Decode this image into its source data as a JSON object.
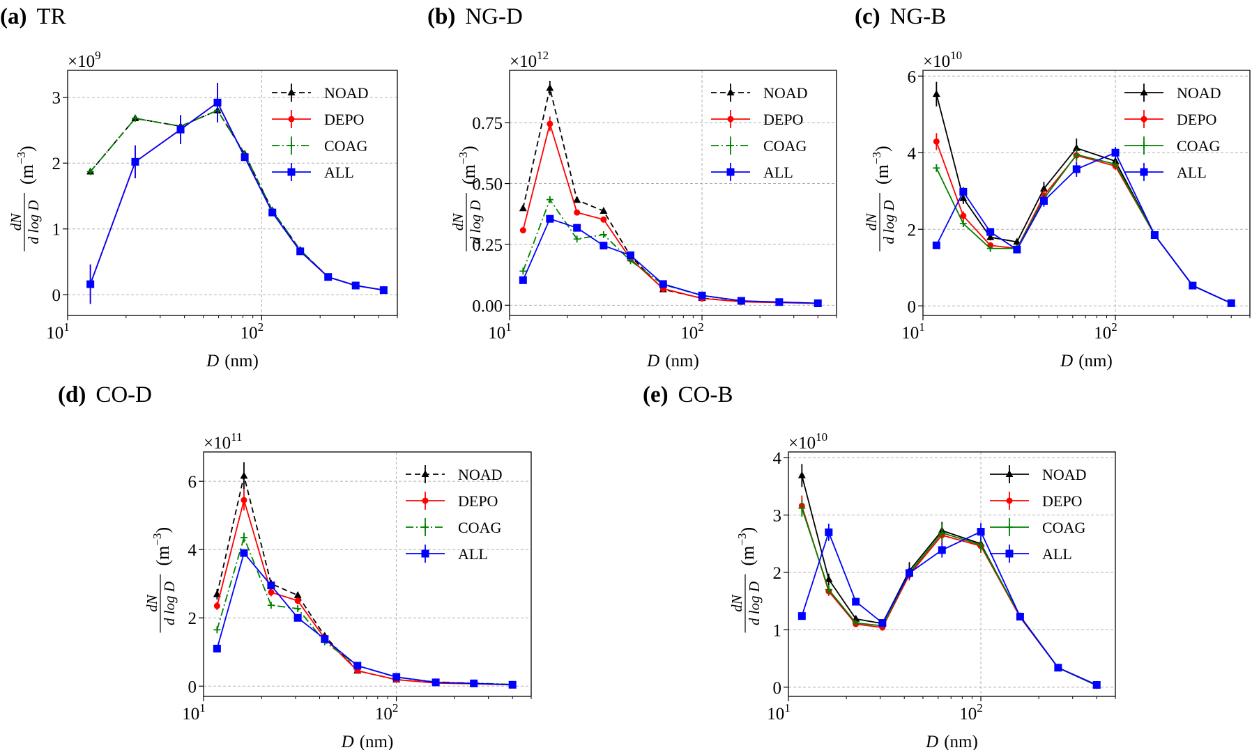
{
  "chart_data": [
    {
      "type": "line",
      "panel_label": "(a)",
      "title": "TR",
      "xlabel": {
        "var": "D",
        "unit": "(nm)"
      },
      "ylabel": {
        "numerator": "dN",
        "denominator": "d log D",
        "unit": "(m",
        "unit_exp": "−3",
        "unit_close": ")"
      },
      "xscale": "log",
      "xlim": [
        10,
        500
      ],
      "ylim": [
        -0.315,
        3.41
      ],
      "x_ticks": [
        "10",
        "1",
        "10",
        "2"
      ],
      "y_ticks": [
        {
          "v": 0,
          "label": "0"
        },
        {
          "v": 1,
          "label": "1"
        },
        {
          "v": 2,
          "label": "2"
        },
        {
          "v": 3,
          "label": "3"
        }
      ],
      "offset": {
        "base": "×10",
        "exp": "9"
      },
      "grid": true,
      "legend": "top-right",
      "x": [
        13.1,
        22.3,
        38.2,
        59.2,
        81.8,
        113.5,
        158,
        220,
        305,
        425
      ],
      "series": [
        {
          "name": "NOAD",
          "color": "#000000",
          "style": "dashed",
          "marker": "triangle",
          "values": [
            1.87,
            2.68,
            2.56,
            2.8,
            2.14,
            1.28,
            0.68,
            0.27,
            0.14,
            0.07
          ],
          "yerr": [
            0.03,
            0.03,
            0.03,
            0.05,
            0.03,
            0.02,
            0.02,
            0.01,
            0.01,
            0.01
          ]
        },
        {
          "name": "DEPO",
          "color": "#ff0000",
          "style": "solid",
          "marker": "circle",
          "values": [
            0.16,
            2.02,
            2.51,
            2.92,
            2.09,
            1.25,
            0.66,
            0.27,
            0.14,
            0.07
          ],
          "yerr": [
            0.3,
            0.25,
            0.22,
            0.3,
            0.05,
            0.04,
            0.03,
            0.02,
            0.01,
            0.01
          ]
        },
        {
          "name": "COAG",
          "color": "#008000",
          "style": "dashdot",
          "marker": "plus",
          "values": [
            1.87,
            2.68,
            2.56,
            2.8,
            2.14,
            1.28,
            0.68,
            0.27,
            0.14,
            0.07
          ],
          "yerr": [
            0.03,
            0.03,
            0.03,
            0.05,
            0.03,
            0.02,
            0.02,
            0.01,
            0.01,
            0.01
          ]
        },
        {
          "name": "ALL",
          "color": "#0000ff",
          "style": "solid",
          "marker": "square",
          "values": [
            0.16,
            2.02,
            2.51,
            2.92,
            2.09,
            1.25,
            0.66,
            0.27,
            0.14,
            0.07
          ],
          "yerr": [
            0.3,
            0.25,
            0.22,
            0.3,
            0.05,
            0.04,
            0.03,
            0.02,
            0.01,
            0.01
          ]
        }
      ]
    },
    {
      "type": "line",
      "panel_label": "(b)",
      "title": "NG-D",
      "xlabel": {
        "var": "D",
        "unit": "(nm)"
      },
      "ylabel": {
        "numerator": "dN",
        "denominator": "d log D",
        "unit": "(m",
        "unit_exp": "−3",
        "unit_close": ")"
      },
      "xscale": "log",
      "xlim": [
        10,
        500
      ],
      "ylim": [
        -0.042,
        0.965
      ],
      "x_ticks": [
        "10",
        "1",
        "10",
        "2"
      ],
      "y_ticks": [
        {
          "v": 0,
          "label": "0.00"
        },
        {
          "v": 0.25,
          "label": "0.25"
        },
        {
          "v": 0.5,
          "label": "0.50"
        },
        {
          "v": 0.75,
          "label": "0.75"
        }
      ],
      "offset": {
        "base": "×10",
        "exp": "12"
      },
      "grid": true,
      "legend": "top-right",
      "x": [
        11.75,
        16.2,
        22.4,
        30.8,
        42.5,
        62.8,
        100,
        160,
        252,
        400
      ],
      "series": [
        {
          "name": "NOAD",
          "color": "#000000",
          "style": "dashed",
          "marker": "triangle",
          "values": [
            0.398,
            0.892,
            0.432,
            0.387,
            0.202,
            0.065,
            0.029,
            0.015,
            0.012,
            0.008
          ],
          "yerr": [
            0.01,
            0.03,
            0.01,
            0.01,
            0.005,
            0.003,
            0.002,
            0.001,
            0.001,
            0.001
          ]
        },
        {
          "name": "DEPO",
          "color": "#ff0000",
          "style": "solid",
          "marker": "circle",
          "values": [
            0.308,
            0.745,
            0.381,
            0.352,
            0.19,
            0.068,
            0.028,
            0.014,
            0.011,
            0.007
          ],
          "yerr": [
            0.01,
            0.03,
            0.01,
            0.01,
            0.005,
            0.003,
            0.002,
            0.001,
            0.001,
            0.001
          ]
        },
        {
          "name": "COAG",
          "color": "#008000",
          "style": "dashdot",
          "marker": "plus",
          "values": [
            0.14,
            0.434,
            0.272,
            0.29,
            0.183,
            0.085,
            0.04,
            0.018,
            0.013,
            0.008
          ],
          "yerr": [
            0.005,
            0.01,
            0.005,
            0.005,
            0.004,
            0.002,
            0.001,
            0.001,
            0.001,
            0.001
          ]
        },
        {
          "name": "ALL",
          "color": "#0000ff",
          "style": "solid",
          "marker": "square",
          "values": [
            0.103,
            0.355,
            0.318,
            0.245,
            0.205,
            0.087,
            0.04,
            0.018,
            0.013,
            0.008
          ],
          "yerr": [
            0.005,
            0.01,
            0.005,
            0.005,
            0.004,
            0.002,
            0.001,
            0.001,
            0.001,
            0.001
          ]
        }
      ]
    },
    {
      "type": "line",
      "panel_label": "(c)",
      "title": "NG-B",
      "xlabel": {
        "var": "D",
        "unit": "(nm)"
      },
      "ylabel": {
        "numerator": "dN",
        "denominator": "d log D",
        "unit": "(m",
        "unit_exp": "−3",
        "unit_close": ")"
      },
      "xscale": "log",
      "xlim": [
        10,
        500
      ],
      "ylim": [
        -0.25,
        6.15
      ],
      "x_ticks": [
        "10",
        "1",
        "10",
        "2"
      ],
      "y_ticks": [
        {
          "v": 0,
          "label": "0"
        },
        {
          "v": 2,
          "label": "2"
        },
        {
          "v": 4,
          "label": "4"
        },
        {
          "v": 6,
          "label": "6"
        }
      ],
      "offset": {
        "base": "×10",
        "exp": "10"
      },
      "grid": true,
      "legend": "top-right",
      "x": [
        11.75,
        16.2,
        22.4,
        30.8,
        42.5,
        62.8,
        100,
        160,
        252,
        400
      ],
      "series": [
        {
          "name": "NOAD",
          "color": "#000000",
          "style": "solid",
          "marker": "triangle",
          "values": [
            5.53,
            2.81,
            1.79,
            1.67,
            3.06,
            4.12,
            3.78,
            1.85,
            0.53,
            0.07
          ],
          "yerr": [
            0.32,
            0.15,
            0.08,
            0.08,
            0.18,
            0.25,
            0.1,
            0.05,
            0.02,
            0.01
          ]
        },
        {
          "name": "DEPO",
          "color": "#ff0000",
          "style": "solid",
          "marker": "circle",
          "values": [
            4.29,
            2.35,
            1.58,
            1.5,
            2.88,
            3.93,
            3.65,
            1.85,
            0.53,
            0.07
          ],
          "yerr": [
            0.22,
            0.12,
            0.06,
            0.06,
            0.15,
            0.15,
            0.1,
            0.05,
            0.02,
            0.01
          ]
        },
        {
          "name": "COAG",
          "color": "#008000",
          "style": "solid",
          "marker": "plus",
          "values": [
            3.6,
            2.15,
            1.5,
            1.5,
            2.8,
            3.95,
            3.7,
            1.85,
            0.53,
            0.07
          ],
          "yerr": [
            0.1,
            0.08,
            0.05,
            0.05,
            0.15,
            0.15,
            0.1,
            0.05,
            0.02,
            0.01
          ]
        },
        {
          "name": "ALL",
          "color": "#0000ff",
          "style": "solid",
          "marker": "square",
          "values": [
            1.58,
            2.98,
            1.93,
            1.47,
            2.74,
            3.57,
            4.0,
            1.85,
            0.53,
            0.07
          ],
          "yerr": [
            0.05,
            0.12,
            0.1,
            0.05,
            0.15,
            0.2,
            0.15,
            0.05,
            0.02,
            0.01
          ]
        }
      ]
    },
    {
      "type": "line",
      "panel_label": "(d)",
      "title": "CO-D",
      "xlabel": {
        "var": "D",
        "unit": "(nm)"
      },
      "ylabel": {
        "numerator": "dN",
        "denominator": "d log D",
        "unit": "(m",
        "unit_exp": "−3",
        "unit_close": ")"
      },
      "xscale": "log",
      "xlim": [
        10,
        500
      ],
      "ylim": [
        -0.3,
        6.86
      ],
      "x_ticks": [
        "10",
        "1",
        "10",
        "2"
      ],
      "y_ticks": [
        {
          "v": 0,
          "label": "0"
        },
        {
          "v": 2,
          "label": "2"
        },
        {
          "v": 4,
          "label": "4"
        },
        {
          "v": 6,
          "label": "6"
        }
      ],
      "offset": {
        "base": "×10",
        "exp": "11"
      },
      "grid": true,
      "legend": "top-right",
      "x": [
        11.75,
        16.2,
        22.4,
        30.8,
        42.5,
        62.8,
        100,
        160,
        252,
        400
      ],
      "series": [
        {
          "name": "NOAD",
          "color": "#000000",
          "style": "dashed",
          "marker": "triangle",
          "values": [
            2.69,
            6.16,
            3.0,
            2.66,
            1.47,
            0.45,
            0.19,
            0.1,
            0.07,
            0.04
          ],
          "yerr": [
            0.15,
            0.4,
            0.1,
            0.1,
            0.05,
            0.02,
            0.01,
            0.01,
            0.01,
            0.01
          ]
        },
        {
          "name": "DEPO",
          "color": "#ff0000",
          "style": "solid",
          "marker": "circle",
          "values": [
            2.35,
            5.45,
            2.75,
            2.5,
            1.4,
            0.45,
            0.19,
            0.09,
            0.07,
            0.04
          ],
          "yerr": [
            0.12,
            0.3,
            0.12,
            0.1,
            0.05,
            0.02,
            0.01,
            0.01,
            0.01,
            0.01
          ]
        },
        {
          "name": "COAG",
          "color": "#008000",
          "style": "dashdot",
          "marker": "plus",
          "values": [
            1.65,
            4.35,
            2.37,
            2.27,
            1.3,
            0.6,
            0.26,
            0.12,
            0.09,
            0.05
          ],
          "yerr": [
            0.05,
            0.15,
            0.05,
            0.05,
            0.04,
            0.02,
            0.01,
            0.01,
            0.01,
            0.01
          ]
        },
        {
          "name": "ALL",
          "color": "#0000ff",
          "style": "solid",
          "marker": "square",
          "values": [
            1.1,
            3.9,
            2.95,
            2.0,
            1.38,
            0.6,
            0.27,
            0.11,
            0.08,
            0.04
          ],
          "yerr": [
            0.04,
            0.1,
            0.05,
            0.05,
            0.04,
            0.02,
            0.01,
            0.01,
            0.01,
            0.01
          ]
        }
      ]
    },
    {
      "type": "line",
      "panel_label": "(e)",
      "title": "CO-B",
      "xlabel": {
        "var": "D",
        "unit": "(nm)"
      },
      "ylabel": {
        "numerator": "dN",
        "denominator": "d log D",
        "unit": "(m",
        "unit_exp": "−3",
        "unit_close": ")"
      },
      "xscale": "log",
      "xlim": [
        10,
        500
      ],
      "ylim": [
        -0.16,
        4.1
      ],
      "x_ticks": [
        "10",
        "1",
        "10",
        "2"
      ],
      "y_ticks": [
        {
          "v": 0,
          "label": "0"
        },
        {
          "v": 1,
          "label": "1"
        },
        {
          "v": 2,
          "label": "2"
        },
        {
          "v": 3,
          "label": "3"
        },
        {
          "v": 4,
          "label": "4"
        }
      ],
      "offset": {
        "base": "×10",
        "exp": "10"
      },
      "grid": true,
      "legend": "top-right",
      "x": [
        11.75,
        16.2,
        22.4,
        30.8,
        42.5,
        62.8,
        100,
        160,
        252,
        400
      ],
      "series": [
        {
          "name": "NOAD",
          "color": "#000000",
          "style": "solid",
          "marker": "triangle",
          "values": [
            3.69,
            1.88,
            1.19,
            1.11,
            2.03,
            2.73,
            2.5,
            1.22,
            0.34,
            0.03
          ],
          "yerr": [
            0.2,
            0.1,
            0.05,
            0.04,
            0.15,
            0.15,
            0.1,
            0.05,
            0.02,
            0.01
          ]
        },
        {
          "name": "DEPO",
          "color": "#ff0000",
          "style": "solid",
          "marker": "circle",
          "values": [
            3.16,
            1.67,
            1.1,
            1.04,
            1.96,
            2.65,
            2.46,
            1.22,
            0.34,
            0.03
          ],
          "yerr": [
            0.18,
            0.08,
            0.04,
            0.04,
            0.1,
            0.15,
            0.12,
            0.05,
            0.02,
            0.01
          ]
        },
        {
          "name": "COAG",
          "color": "#008000",
          "style": "solid",
          "marker": "plus",
          "values": [
            3.12,
            1.7,
            1.12,
            1.07,
            1.99,
            2.69,
            2.48,
            1.24,
            0.34,
            0.03
          ],
          "yerr": [
            0.15,
            0.08,
            0.04,
            0.04,
            0.1,
            0.15,
            0.12,
            0.05,
            0.02,
            0.01
          ]
        },
        {
          "name": "ALL",
          "color": "#0000ff",
          "style": "solid",
          "marker": "square",
          "values": [
            1.24,
            2.7,
            1.49,
            1.12,
            1.99,
            2.39,
            2.71,
            1.23,
            0.34,
            0.04
          ],
          "yerr": [
            0.04,
            0.15,
            0.06,
            0.04,
            0.1,
            0.13,
            0.15,
            0.05,
            0.02,
            0.01
          ]
        }
      ]
    }
  ]
}
